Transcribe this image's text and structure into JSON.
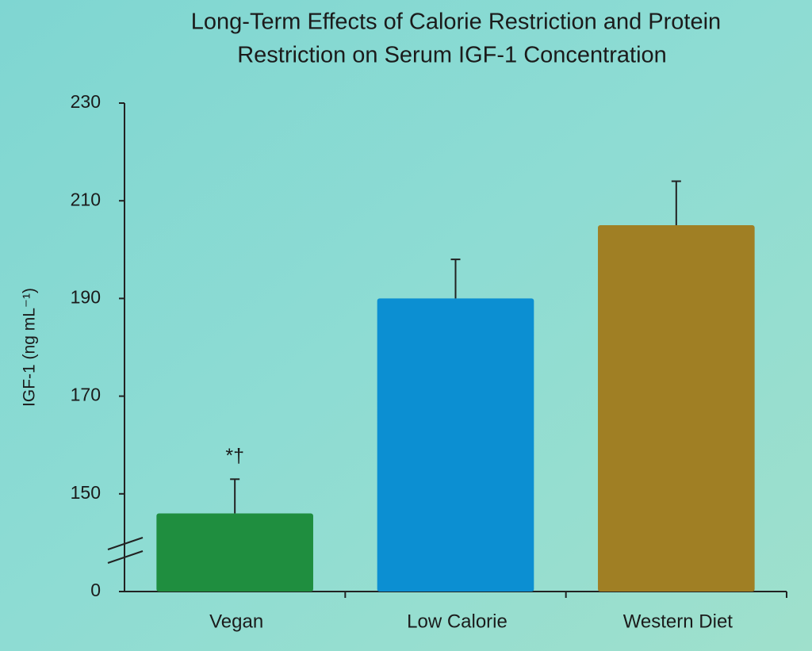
{
  "chart_data": {
    "type": "bar",
    "title": [
      "Long-Term Effects of Calorie Restriction and Protein",
      "Restriction on Serum IGF-1 Concentration"
    ],
    "ylabel": "IGF-1 (ng mL⁻¹)",
    "categories": [
      "Vegan",
      "Low Calorie",
      "Western Diet"
    ],
    "values": [
      146,
      190,
      205
    ],
    "errors": [
      7,
      8,
      9
    ],
    "colors": [
      "#1f8e3f",
      "#0c8fd2",
      "#a07f24"
    ],
    "annotations": [
      "*†",
      null,
      null
    ],
    "ylim": [
      0,
      230
    ],
    "axis_break": [
      0,
      130
    ],
    "yticks": [
      0,
      150,
      170,
      190,
      210,
      230
    ],
    "grid": false
  }
}
